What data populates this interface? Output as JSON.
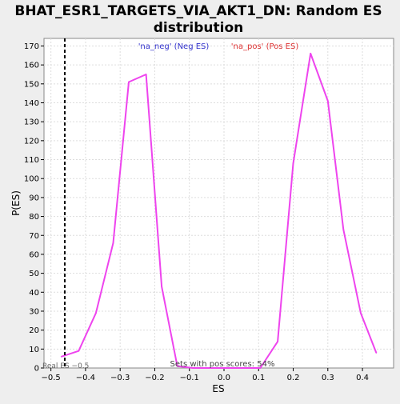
{
  "chart_data": {
    "type": "line",
    "title": "BHAT_ESR1_TARGETS_VIA_AKT1_DN: Random ES distribution",
    "title_lines": [
      "BHAT_ESR1_TARGETS_VIA_AKT1_DN: Random ES",
      "distribution"
    ],
    "xlabel": "ES",
    "ylabel": "P(ES)",
    "xlim": [
      -0.52,
      0.49
    ],
    "ylim": [
      0,
      174
    ],
    "x_ticks": [
      -0.5,
      -0.4,
      -0.3,
      -0.2,
      -0.1,
      0.0,
      0.1,
      0.2,
      0.3,
      0.4
    ],
    "x_tick_labels": [
      "−0.5",
      "−0.4",
      "−0.3",
      "−0.2",
      "−0.1",
      "0.0",
      "0.1",
      "0.2",
      "0.3",
      "0.4"
    ],
    "y_ticks": [
      0,
      10,
      20,
      30,
      40,
      50,
      60,
      70,
      80,
      90,
      100,
      110,
      120,
      130,
      140,
      150,
      160,
      170
    ],
    "grid": true,
    "legend": [
      {
        "label": "'na_neg' (Neg ES)",
        "color": "#3333cc"
      },
      {
        "label": "'na_pos' (Pos ES)",
        "color": "#dd3333"
      }
    ],
    "series": [
      {
        "color": "#ee44ee",
        "x": [
          -0.47,
          -0.42,
          -0.37,
          -0.32,
          -0.275,
          -0.225,
          -0.18,
          -0.135,
          -0.09,
          -0.04,
          0.01,
          0.06,
          0.105,
          0.155,
          0.2,
          0.25,
          0.3,
          0.345,
          0.395,
          0.44
        ],
        "y": [
          6,
          9,
          29,
          66,
          151,
          155,
          43,
          1,
          0,
          0,
          0,
          0,
          0,
          14,
          108,
          166,
          141,
          73,
          29,
          8
        ]
      }
    ],
    "reference_line": {
      "x": -0.46,
      "label": "Real ES −0.5",
      "style": "dashed",
      "color": "#000000"
    },
    "annotation": "Sets with pos scores: 54%",
    "colors": {
      "background": "#eeeeee",
      "plot_bg": "#ffffff",
      "grid": "#dddddd",
      "axis": "#000000"
    }
  }
}
